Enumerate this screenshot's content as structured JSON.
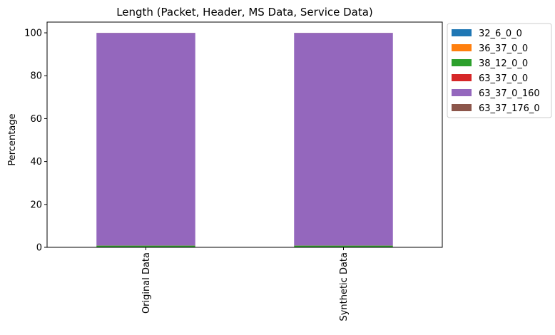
{
  "chart_data": {
    "type": "bar",
    "stacked": true,
    "title": "Length (Packet, Header, MS Data, Service Data)",
    "xlabel": "",
    "ylabel": "Percentage",
    "ylim": [
      0,
      105
    ],
    "yticks": [
      0,
      20,
      40,
      60,
      80,
      100
    ],
    "categories": [
      "Original Data",
      "Synthetic Data"
    ],
    "series": [
      {
        "name": "32_6_0_0",
        "color": "#1f77b4",
        "values": [
          0.05,
          0.05
        ]
      },
      {
        "name": "36_37_0_0",
        "color": "#ff7f0e",
        "values": [
          0.05,
          0.05
        ]
      },
      {
        "name": "38_12_0_0",
        "color": "#2ca02c",
        "values": [
          0.7,
          0.7
        ]
      },
      {
        "name": "63_37_0_0",
        "color": "#d62728",
        "values": [
          0.05,
          0.05
        ]
      },
      {
        "name": "63_37_0_160",
        "color": "#9467bd",
        "values": [
          99.1,
          99.1
        ]
      },
      {
        "name": "63_37_176_0",
        "color": "#8c564b",
        "values": [
          0.05,
          0.05
        ]
      }
    ],
    "legend_position": "outside-top-right",
    "grid": false
  }
}
